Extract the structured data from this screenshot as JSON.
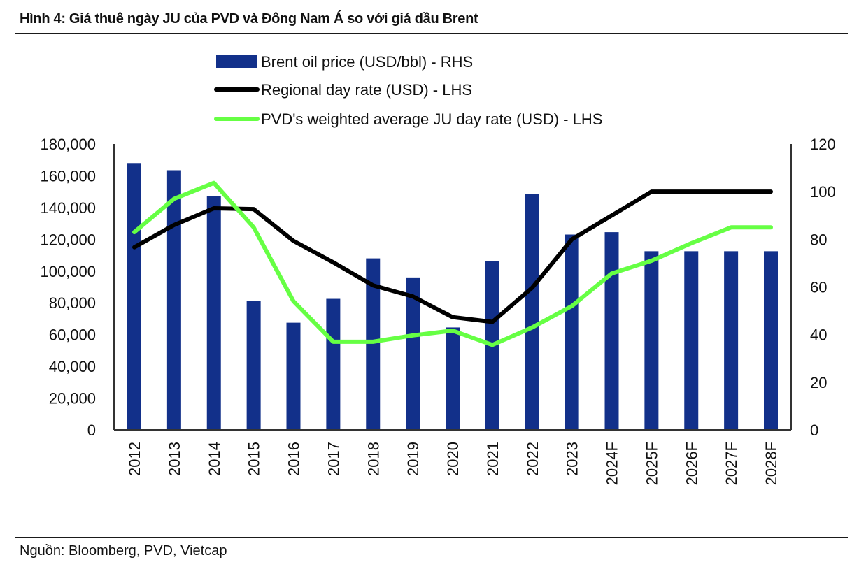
{
  "figure": {
    "title": "Hình 4: Giá thuê ngày JU của PVD và Đông Nam Á so với giá dầu Brent",
    "source": "Nguồn: Bloomberg, PVD, Vietcap"
  },
  "chart_data": {
    "type": "bar+line",
    "title": "Hình 4: Giá thuê ngày JU của PVD và Đông Nam Á so với giá dầu Brent",
    "categories": [
      "2012",
      "2013",
      "2014",
      "2015",
      "2016",
      "2017",
      "2018",
      "2019",
      "2020",
      "2021",
      "2022",
      "2023",
      "2024F",
      "2025F",
      "2026F",
      "2027F",
      "2028F"
    ],
    "left_axis": {
      "label": "",
      "range": [
        0,
        180000
      ],
      "ticks": [
        "0",
        "20,000",
        "40,000",
        "60,000",
        "80,000",
        "100,000",
        "120,000",
        "140,000",
        "160,000",
        "180,000"
      ]
    },
    "right_axis": {
      "label": "",
      "range": [
        0,
        120
      ],
      "ticks": [
        "0",
        "20",
        "40",
        "60",
        "80",
        "100",
        "120"
      ]
    },
    "series": [
      {
        "name": "Brent oil price (USD/bbl) - RHS",
        "type": "bar",
        "axis": "right",
        "color": "#12308a",
        "values": [
          112,
          109,
          98,
          54,
          45,
          55,
          72,
          64,
          43,
          71,
          99,
          82,
          83,
          75,
          75,
          75,
          75
        ]
      },
      {
        "name": "Regional day rate (USD) - LHS",
        "type": "line",
        "axis": "left",
        "color": "#000000",
        "values": [
          115000,
          129000,
          139500,
          139000,
          119000,
          105500,
          91000,
          84000,
          71000,
          68000,
          89500,
          120000,
          135000,
          150000,
          150000,
          150000,
          150000
        ]
      },
      {
        "name": "PVD's weighted average JU day rate (USD) - LHS",
        "type": "line",
        "axis": "left",
        "color": "#66ff44",
        "values": [
          124500,
          145500,
          155500,
          127500,
          81000,
          55500,
          55500,
          59500,
          62500,
          53500,
          64500,
          78000,
          98500,
          106500,
          117500,
          127500,
          127500
        ]
      }
    ],
    "legend": {
      "placement": "top-center"
    },
    "grid": false
  }
}
